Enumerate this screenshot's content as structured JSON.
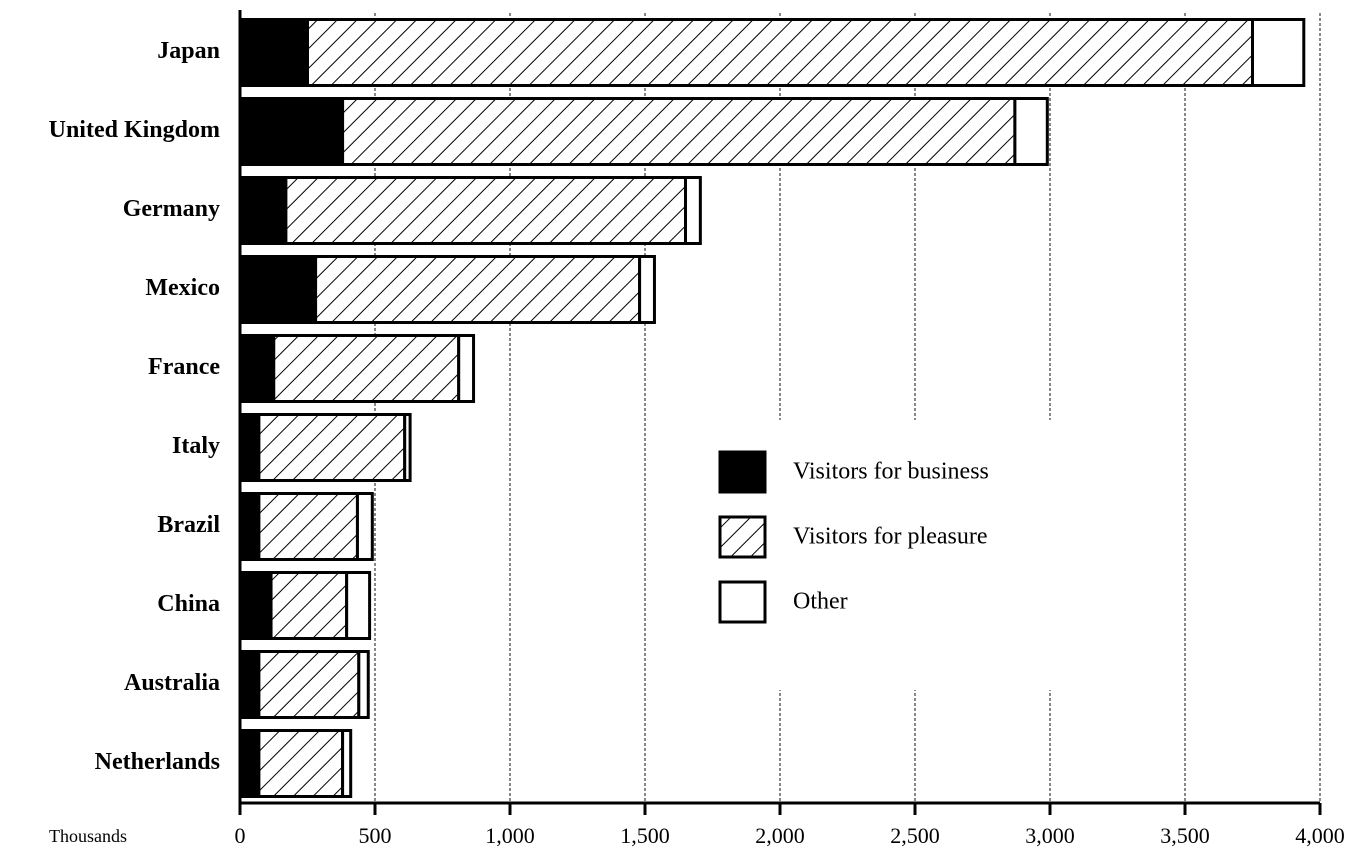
{
  "chart_data": {
    "type": "stacked_bar_horizontal",
    "categories": [
      "Japan",
      "United Kingdom",
      "Germany",
      "Mexico",
      "France",
      "Italy",
      "Brazil",
      "China",
      "Australia",
      "Netherlands"
    ],
    "series": [
      {
        "name": "Visitors for business",
        "color": "#000000",
        "values": [
          250,
          380,
          170,
          280,
          125,
          70,
          70,
          115,
          70,
          70
        ]
      },
      {
        "name": "Visitors for pleasure",
        "color": "#000000",
        "hatch": true,
        "values": [
          3500,
          2490,
          1480,
          1200,
          685,
          540,
          365,
          280,
          370,
          310
        ]
      },
      {
        "name": "Other",
        "color": "#ffffff",
        "values": [
          190,
          120,
          55,
          55,
          55,
          20,
          55,
          85,
          35,
          30
        ]
      }
    ],
    "x_label": "Thousands",
    "xlim": [
      0,
      4000
    ],
    "xticks": [
      0,
      500,
      {
        "value": 1000,
        "label": "1,000"
      },
      {
        "value": 1500,
        "label": "1,500"
      },
      {
        "value": 2000,
        "label": "2,000"
      },
      {
        "value": 2500,
        "label": "2,500"
      },
      {
        "value": 3000,
        "label": "3,000"
      },
      {
        "value": 3500,
        "label": "3,500"
      },
      {
        "value": 4000,
        "label": "4,000"
      }
    ],
    "grid": true
  }
}
